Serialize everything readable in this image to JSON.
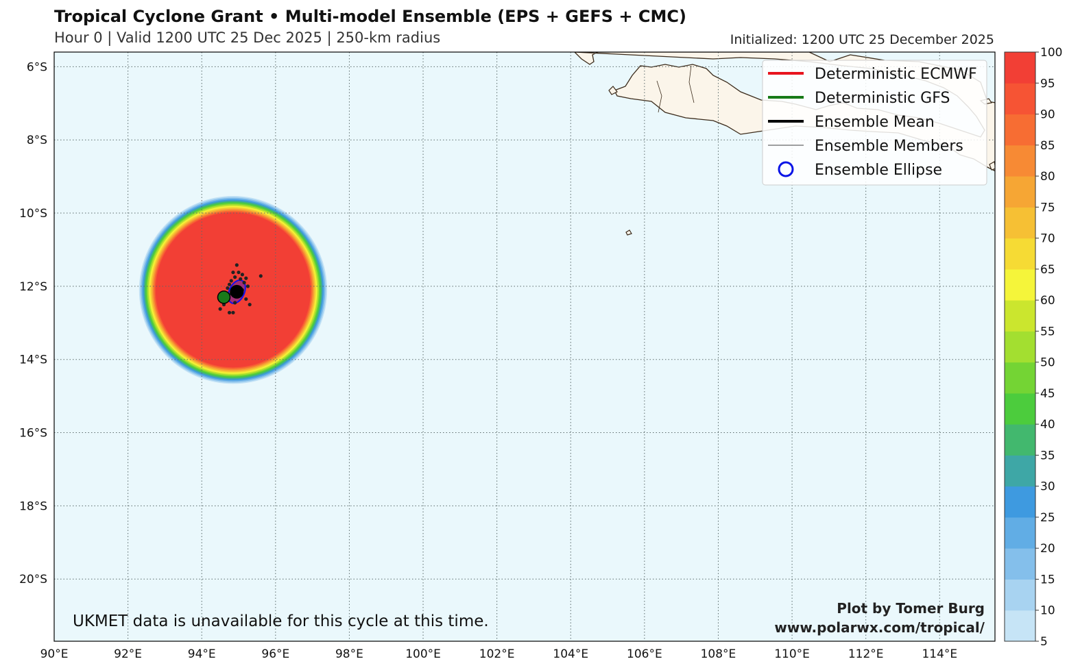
{
  "header": {
    "title": "Tropical Cyclone Grant • Multi-model Ensemble (EPS + GEFS + CMC)",
    "subtitle": "Hour 0 | Valid 1200 UTC 25 Dec 2025 | 250-km radius",
    "initialized": "Initialized: 1200 UTC 25 December 2025"
  },
  "map": {
    "projection": "plate-carree",
    "lon_range": [
      90,
      115.5
    ],
    "lat_range": [
      -21.7,
      -5.6
    ],
    "ocean_color": "#eaf8fc",
    "land_color": "#fbf5ea",
    "coast_color": "#3a2a1a",
    "grid": "dotted",
    "lat_ticks": [
      {
        "value": -6,
        "label": "6°S"
      },
      {
        "value": -8,
        "label": "8°S"
      },
      {
        "value": -10,
        "label": "10°S"
      },
      {
        "value": -12,
        "label": "12°S"
      },
      {
        "value": -14,
        "label": "14°S"
      },
      {
        "value": -16,
        "label": "16°S"
      },
      {
        "value": -18,
        "label": "18°S"
      },
      {
        "value": -20,
        "label": "20°S"
      }
    ],
    "lon_ticks": [
      {
        "value": 90,
        "label": "90°E"
      },
      {
        "value": 92,
        "label": "92°E"
      },
      {
        "value": 94,
        "label": "94°E"
      },
      {
        "value": 96,
        "label": "96°E"
      },
      {
        "value": 98,
        "label": "98°E"
      },
      {
        "value": 100,
        "label": "100°E"
      },
      {
        "value": 102,
        "label": "102°E"
      },
      {
        "value": 104,
        "label": "104°E"
      },
      {
        "value": 106,
        "label": "106°E"
      },
      {
        "value": 108,
        "label": "108°E"
      },
      {
        "value": 110,
        "label": "110°E"
      },
      {
        "value": 112,
        "label": "112°E"
      },
      {
        "value": 114,
        "label": "114°E"
      }
    ]
  },
  "probability": {
    "center": {
      "lon": 94.85,
      "lat": -12.1
    },
    "full_radius_deg": 2.1,
    "outer_radius_deg": 2.55
  },
  "points": {
    "gfs_position": {
      "lon": 94.6,
      "lat": -12.3,
      "color": "#1a7a1a"
    },
    "ensemble_mean": {
      "lon": 94.95,
      "lat": -12.15
    },
    "ellipse_color": "#1010ee",
    "members": [
      [
        94.95,
        -11.42
      ],
      [
        94.85,
        -11.62
      ],
      [
        95.0,
        -11.62
      ],
      [
        95.1,
        -11.68
      ],
      [
        95.6,
        -11.72
      ],
      [
        94.9,
        -11.75
      ],
      [
        95.05,
        -11.8
      ],
      [
        94.8,
        -11.85
      ],
      [
        95.2,
        -11.78
      ],
      [
        94.75,
        -11.95
      ],
      [
        95.15,
        -11.9
      ],
      [
        94.7,
        -12.05
      ],
      [
        95.25,
        -12.0
      ],
      [
        95.1,
        -12.1
      ],
      [
        94.8,
        -12.2
      ],
      [
        95.0,
        -12.25
      ],
      [
        94.65,
        -12.3
      ],
      [
        95.2,
        -12.35
      ],
      [
        94.9,
        -12.45
      ],
      [
        94.6,
        -12.5
      ],
      [
        94.5,
        -12.62
      ],
      [
        94.75,
        -12.72
      ],
      [
        94.85,
        -12.72
      ],
      [
        95.3,
        -12.5
      ],
      [
        94.95,
        -12.05
      ]
    ]
  },
  "legend": {
    "items": [
      {
        "label": "Deterministic ECMWF",
        "kind": "line",
        "color": "#e8141e"
      },
      {
        "label": "Deterministic GFS",
        "kind": "line",
        "color": "#177a17"
      },
      {
        "label": "Ensemble Mean",
        "kind": "line",
        "color": "#000000"
      },
      {
        "label": "Ensemble Members",
        "kind": "thin-line",
        "color": "#000000"
      },
      {
        "label": "Ensemble Ellipse",
        "kind": "circle",
        "color": "#0a14e6"
      }
    ]
  },
  "colorbar": {
    "min": 5,
    "max": 100,
    "labels": [
      "100",
      "95",
      "90",
      "85",
      "80",
      "75",
      "70",
      "65",
      "60",
      "55",
      "50",
      "45",
      "40",
      "35",
      "30",
      "25",
      "20",
      "15",
      "10",
      "5"
    ],
    "colors": [
      "#c6e4f6",
      "#a8d3f1",
      "#84bfeb",
      "#61ade5",
      "#3e9ae0",
      "#3ea7a6",
      "#42b86e",
      "#4ccc3d",
      "#74d434",
      "#a3df30",
      "#cbe62e",
      "#f5f53a",
      "#f6db34",
      "#f6c034",
      "#f6a634",
      "#f78a34",
      "#f76d33",
      "#f65434",
      "#f23f35"
    ]
  },
  "annotations": {
    "note": "UKMET data is unavailable for this cycle at this time.",
    "credit_line1": "Plot by Tomer Burg",
    "credit_line2": "www.polarwx.com/tropical/"
  }
}
